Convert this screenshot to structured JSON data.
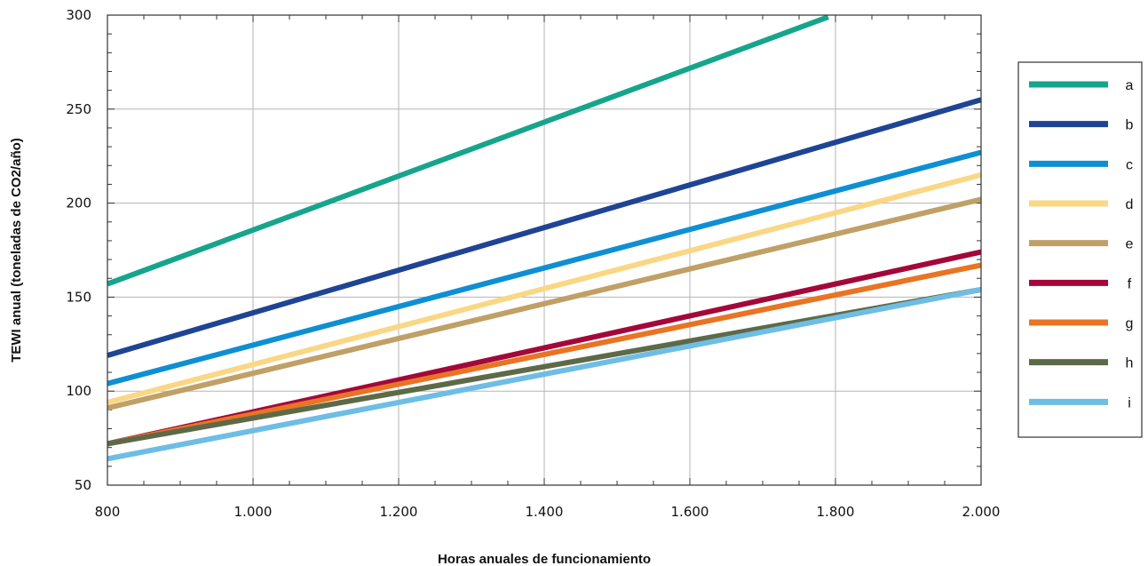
{
  "chart_data": {
    "type": "line",
    "xlabel": "Horas anuales de funcionamiento",
    "ylabel": "TEWI anual (toneladas de CO2/año)",
    "xlim": [
      800,
      2000
    ],
    "ylim": [
      50,
      300
    ],
    "x_ticks": [
      {
        "value": 800,
        "label": "800"
      },
      {
        "value": 1000,
        "label": "1.000"
      },
      {
        "value": 1200,
        "label": "1.200"
      },
      {
        "value": 1400,
        "label": "1.400"
      },
      {
        "value": 1600,
        "label": "1.600"
      },
      {
        "value": 1800,
        "label": "1.800"
      },
      {
        "value": 2000,
        "label": "2.000"
      }
    ],
    "y_ticks": [
      {
        "value": 50,
        "label": "50"
      },
      {
        "value": 100,
        "label": "100"
      },
      {
        "value": 150,
        "label": "150"
      },
      {
        "value": 200,
        "label": "200"
      },
      {
        "value": 250,
        "label": "250"
      },
      {
        "value": 300,
        "label": "300"
      }
    ],
    "grid": true,
    "legend_position": "right",
    "series": [
      {
        "name": "a",
        "color": "#16a58c",
        "x": [
          800,
          1790
        ],
        "y": [
          157,
          299
        ]
      },
      {
        "name": "b",
        "color": "#1f4494",
        "x": [
          800,
          2000
        ],
        "y": [
          119,
          255
        ]
      },
      {
        "name": "c",
        "color": "#0f8fd3",
        "x": [
          800,
          2000
        ],
        "y": [
          104,
          227
        ]
      },
      {
        "name": "d",
        "color": "#fad785",
        "x": [
          800,
          2000
        ],
        "y": [
          94,
          215
        ]
      },
      {
        "name": "e",
        "color": "#c0a067",
        "x": [
          800,
          2000
        ],
        "y": [
          91,
          202
        ]
      },
      {
        "name": "f",
        "color": "#a4073a",
        "x": [
          800,
          2000
        ],
        "y": [
          72,
          174
        ]
      },
      {
        "name": "g",
        "color": "#e87424",
        "x": [
          800,
          2000
        ],
        "y": [
          72,
          167
        ]
      },
      {
        "name": "h",
        "color": "#5d6a48",
        "x": [
          800,
          2000
        ],
        "y": [
          72,
          154
        ]
      },
      {
        "name": "i",
        "color": "#6ebde5",
        "x": [
          800,
          2000
        ],
        "y": [
          64,
          154
        ]
      }
    ]
  }
}
